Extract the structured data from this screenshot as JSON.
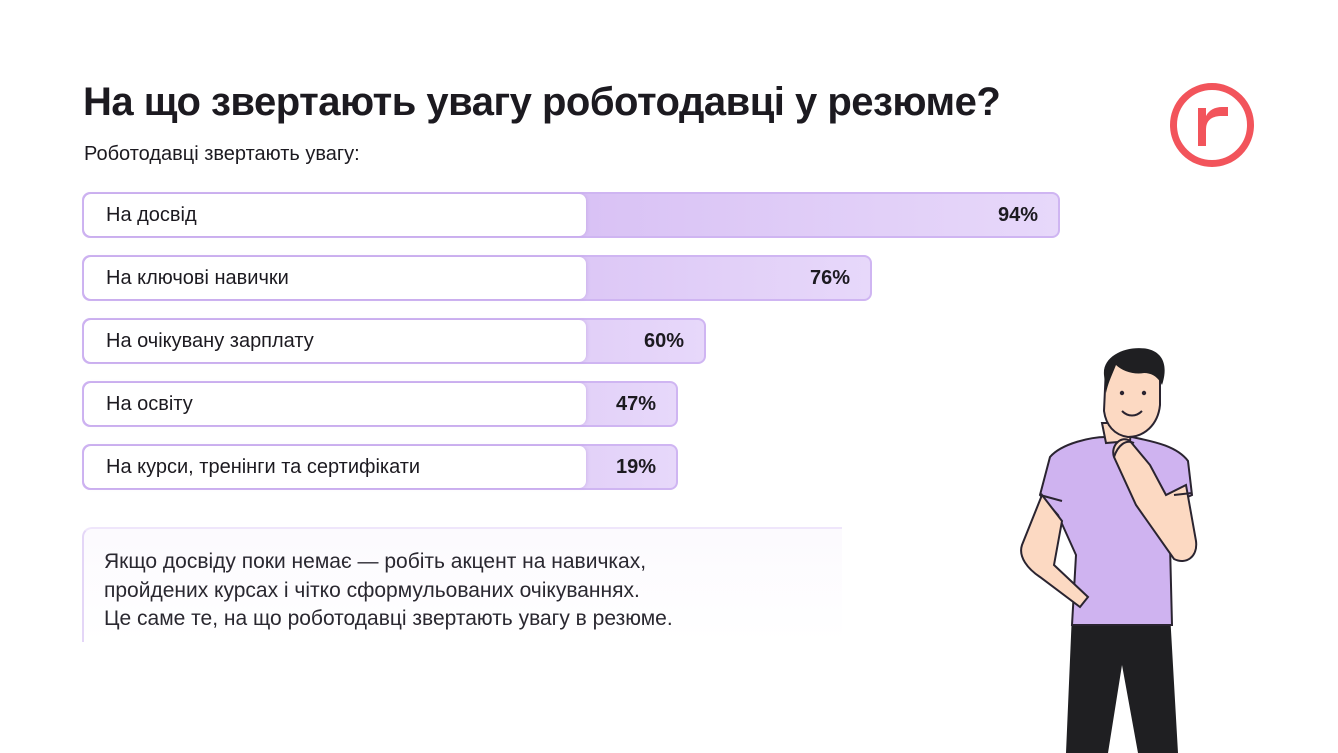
{
  "title": "На що звертають увагу роботодавці у резюме?",
  "subtitle": "Роботодавці звертають увагу:",
  "logo": {
    "icon": "r-logo-icon",
    "color": "#f2545b"
  },
  "chart_data": {
    "type": "bar",
    "orientation": "horizontal",
    "categories": [
      "На досвід",
      "На ключові навички",
      "На очікувану зарплату",
      "На освіту",
      "На курси, тренінги та сертифікати"
    ],
    "values": [
      94,
      76,
      60,
      47,
      19
    ],
    "value_labels": [
      "94%",
      "76%",
      "60%",
      "47%",
      "19%"
    ],
    "unit": "%",
    "colors": {
      "bar": "#c8a6ee",
      "bar_light": "#e7d8fa",
      "label_bg": "#ffffff"
    }
  },
  "note": {
    "lines": [
      "Якщо досвіду поки немає — робіть акцент на навичках,",
      "пройдених курсах і чітко сформульованих очікуваннях.",
      "Це саме те, на що роботодавці звертають увагу в резюме."
    ]
  },
  "illustration": {
    "icon": "thinking-man-illustration",
    "shirt_color": "#cfb3f0"
  }
}
